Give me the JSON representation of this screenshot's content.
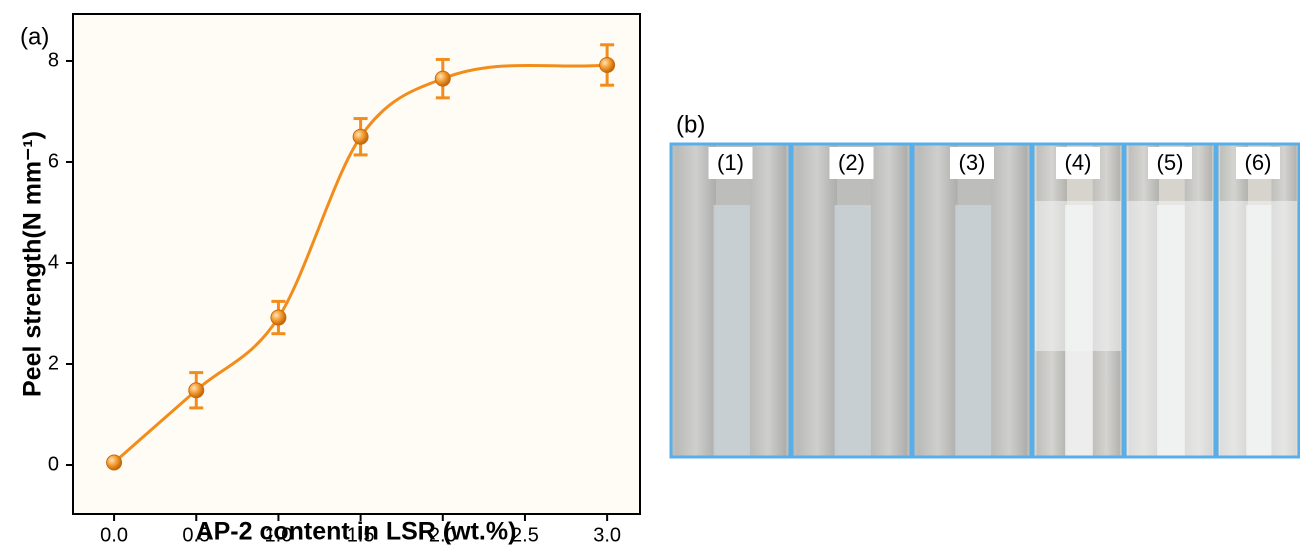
{
  "chart_data": {
    "type": "line",
    "panel_label": "(a)",
    "xlabel": "AP-2 content in LSR (wt.%)",
    "ylabel": "Peel strength(N mm⁻¹)",
    "x": [
      0,
      0.5,
      1.0,
      1.5,
      2.0,
      3.0
    ],
    "values": [
      0.05,
      1.48,
      2.92,
      6.5,
      7.65,
      7.92
    ],
    "errors": [
      0.05,
      0.35,
      0.32,
      0.36,
      0.38,
      0.4
    ],
    "color": "#f28c1a",
    "xlim": [
      -0.25,
      3.2
    ],
    "ylim": [
      -0.97,
      8.93
    ],
    "xticks": [
      {
        "value": 0,
        "label": "0.0"
      },
      {
        "value": 0.5,
        "label": "0.5"
      },
      {
        "value": 1,
        "label": "1.0"
      },
      {
        "value": 1.5,
        "label": "1.5"
      },
      {
        "value": 2,
        "label": "2.0"
      },
      {
        "value": 2.5,
        "label": "2.5"
      },
      {
        "value": 3,
        "label": "3.0"
      }
    ],
    "yticks": [
      0,
      2,
      4,
      6,
      8
    ]
  },
  "panel_b": {
    "label": "(b)",
    "photos": [
      "(1)",
      "(2)",
      "(3)",
      "(4)",
      "(5)",
      "(6)"
    ]
  }
}
